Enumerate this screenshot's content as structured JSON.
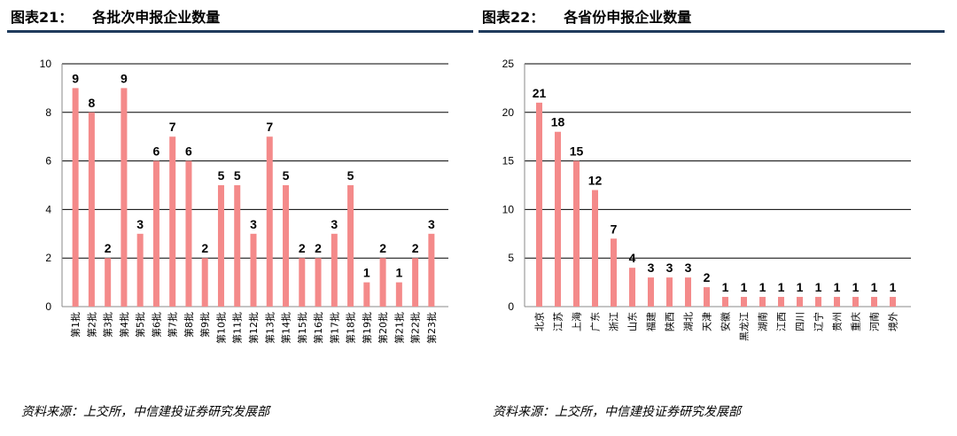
{
  "left": {
    "title_num": "图表21：",
    "title_text": "各批次申报企业数量",
    "source": "资料来源：上交所，中信建投证券研究发展部"
  },
  "right": {
    "title_num": "图表22：",
    "title_text": "各省份申报企业数量",
    "source": "资料来源：上交所，中信建投证券研究发展部"
  },
  "chart_data": [
    {
      "type": "bar",
      "title": "各批次申报企业数量",
      "categories": [
        "第1批",
        "第2批",
        "第3批",
        "第4批",
        "第5批",
        "第6批",
        "第7批",
        "第8批",
        "第9批",
        "第10批",
        "第11批",
        "第12批",
        "第13批",
        "第14批",
        "第15批",
        "第16批",
        "第17批",
        "第18批",
        "第19批",
        "第20批",
        "第21批",
        "第22批",
        "第23批"
      ],
      "values": [
        9,
        8,
        2,
        9,
        3,
        6,
        7,
        6,
        2,
        5,
        5,
        3,
        7,
        5,
        2,
        2,
        3,
        5,
        1,
        2,
        1,
        2,
        3
      ],
      "ylim": [
        0,
        10
      ],
      "yticks": [
        0,
        2,
        4,
        6,
        8,
        10
      ],
      "grid": true,
      "bar_color": "#f48a8a"
    },
    {
      "type": "bar",
      "title": "各省份申报企业数量",
      "categories": [
        "北京",
        "江苏",
        "上海",
        "广东",
        "浙江",
        "山东",
        "福建",
        "陕西",
        "湖北",
        "天津",
        "安徽",
        "黑龙江",
        "湖南",
        "江西",
        "四川",
        "辽宁",
        "贵州",
        "重庆",
        "河南",
        "境外"
      ],
      "values": [
        21,
        18,
        15,
        12,
        7,
        4,
        3,
        3,
        3,
        2,
        1,
        1,
        1,
        1,
        1,
        1,
        1,
        1,
        1,
        1
      ],
      "ylim": [
        0,
        25
      ],
      "yticks": [
        0,
        5,
        10,
        15,
        20,
        25
      ],
      "grid": true,
      "bar_color": "#f48a8a"
    }
  ]
}
